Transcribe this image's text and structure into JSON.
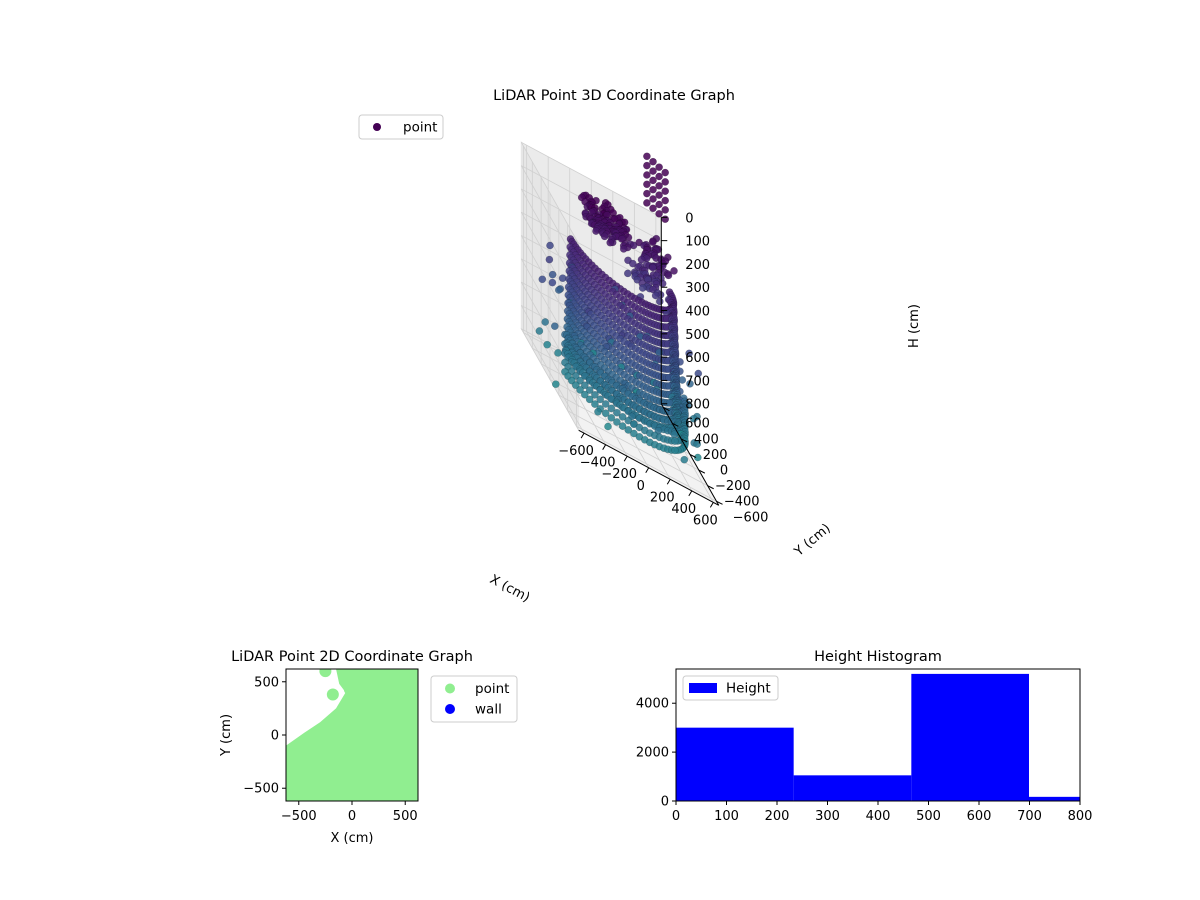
{
  "chart_data": [
    {
      "type": "scatter",
      "title": "LiDAR Point 3D Coordinate Graph",
      "xlabel": "X (cm)",
      "ylabel": "Y (cm)",
      "zlabel": "H (cm)",
      "xlim": [
        -650,
        650
      ],
      "ylim": [
        -650,
        650
      ],
      "zlim": [
        0,
        800
      ],
      "zaxis_inverted": true,
      "x_ticks": [
        -600,
        -400,
        -200,
        0,
        200,
        400,
        600
      ],
      "y_ticks": [
        -600,
        -400,
        -200,
        0,
        200,
        400,
        600
      ],
      "z_ticks": [
        0,
        100,
        200,
        300,
        400,
        500,
        600,
        700,
        800
      ],
      "grid": true,
      "legend": {
        "placement": "upper-left",
        "entries": [
          "point"
        ]
      },
      "colormap": "viridis",
      "colors": {
        "low": "#440154",
        "mid": "#3b528b",
        "high": "#2a788e",
        "outlier": "#7ad4b0"
      },
      "series": [
        {
          "name": "point",
          "description_points": {
            "inner_ring": {
              "radius": 300,
              "height": [
                0,
                200
              ]
            },
            "main_ring": {
              "radius": 480,
              "height": [
                150,
                650
              ]
            },
            "outer_ring": {
              "radius": 650,
              "height": [
                600,
                800
              ]
            }
          }
        }
      ]
    },
    {
      "type": "scatter",
      "title": "LiDAR Point 2D Coordinate Graph",
      "xlabel": "X (cm)",
      "ylabel": "Y (cm)",
      "xlim": [
        -620,
        620
      ],
      "ylim": [
        -620,
        620
      ],
      "x_ticks": [
        -500,
        0,
        500
      ],
      "y_ticks": [
        -500,
        0,
        500
      ],
      "legend": {
        "placement": "outside-right",
        "entries": [
          {
            "label": "point",
            "color": "#90ee90"
          },
          {
            "label": "wall",
            "color": "#0000ff"
          }
        ]
      }
    },
    {
      "type": "bar",
      "title": "Height Histogram",
      "xlabel": "",
      "ylabel": "",
      "xlim": [
        0,
        800
      ],
      "ylim": [
        0,
        5400
      ],
      "x_ticks": [
        0,
        100,
        200,
        300,
        400,
        500,
        600,
        700,
        800
      ],
      "y_ticks": [
        0,
        2000,
        4000
      ],
      "bins": [
        {
          "from": 0,
          "to": 233,
          "count": 3000
        },
        {
          "from": 233,
          "to": 466,
          "count": 1050
        },
        {
          "from": 466,
          "to": 699,
          "count": 5200
        },
        {
          "from": 699,
          "to": 800,
          "count": 170
        }
      ],
      "color": "#0000ff",
      "legend": {
        "placement": "upper-left",
        "entries": [
          "Height"
        ]
      }
    }
  ]
}
